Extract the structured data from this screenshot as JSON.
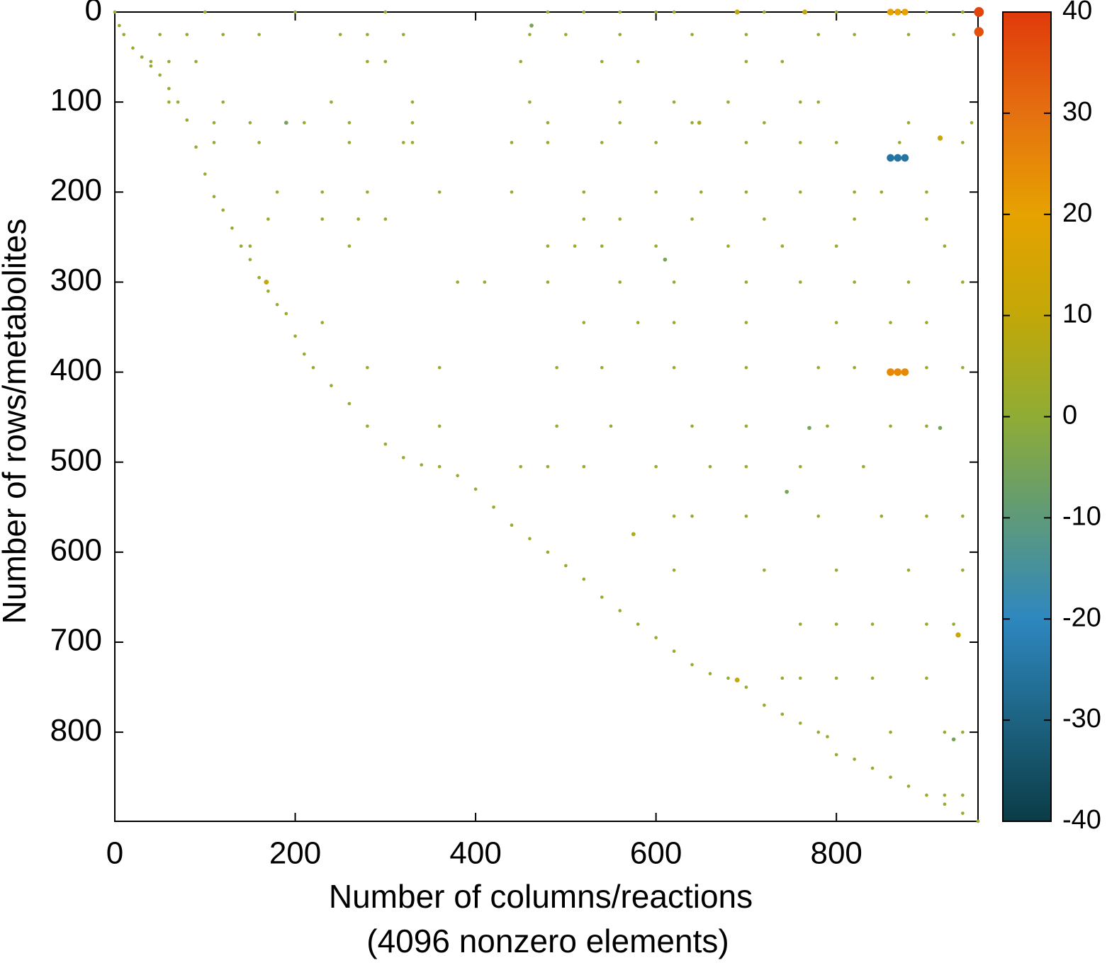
{
  "chart_data": {
    "type": "scatter",
    "xlabel": [
      "Number of columns/reactions",
      "(4096 nonzero elements)"
    ],
    "ylabel": "Number of rows/metabolites",
    "xlim": [
      0,
      957
    ],
    "xticks": [
      0,
      200,
      400,
      600,
      800
    ],
    "ylim": [
      899,
      0
    ],
    "yticks": [
      0,
      100,
      200,
      300,
      400,
      500,
      600,
      700,
      800
    ],
    "clim": [
      -40,
      40
    ],
    "cticks": [
      -40,
      -30,
      -20,
      -10,
      0,
      10,
      20,
      30,
      40
    ],
    "colormap": [
      "#0b3c46",
      "#1d6382",
      "#2e87bf",
      "#5e9a7a",
      "#8fac35",
      "#c2a808",
      "#e6a200",
      "#e57010",
      "#e03a0a"
    ],
    "x": [
      0,
      5,
      10,
      20,
      30,
      40,
      50,
      60,
      70,
      80,
      90,
      100,
      110,
      120,
      130,
      140,
      150,
      160,
      170,
      180,
      190,
      200,
      210,
      220,
      240,
      260,
      280,
      300,
      320,
      340,
      360,
      380,
      400,
      420,
      440,
      460,
      480,
      500,
      520,
      540,
      560,
      580,
      600,
      620,
      640,
      660,
      680,
      700,
      720,
      740,
      760,
      780,
      790,
      800,
      820,
      840,
      860,
      880,
      900,
      920,
      940,
      957,
      100,
      200,
      300,
      480,
      520,
      560,
      600,
      620,
      720,
      800,
      900,
      940,
      50,
      80,
      120,
      160,
      250,
      280,
      320,
      460,
      500,
      560,
      640,
      700,
      780,
      820,
      880,
      930,
      40,
      60,
      90,
      280,
      300,
      450,
      540,
      580,
      700,
      740,
      60,
      120,
      240,
      330,
      460,
      560,
      620,
      680,
      760,
      780,
      110,
      150,
      210,
      260,
      330,
      480,
      560,
      640,
      720,
      880,
      950,
      110,
      160,
      260,
      320,
      330,
      440,
      480,
      540,
      600,
      700,
      760,
      800,
      870,
      940,
      180,
      230,
      280,
      360,
      440,
      520,
      600,
      650,
      700,
      760,
      820,
      850,
      900,
      170,
      230,
      270,
      300,
      520,
      560,
      640,
      720,
      820,
      900,
      150,
      260,
      480,
      510,
      540,
      600,
      680,
      740,
      800,
      920,
      380,
      410,
      480,
      560,
      620,
      700,
      760,
      820,
      880,
      940,
      230,
      520,
      580,
      620,
      700,
      800,
      860,
      900,
      280,
      360,
      490,
      540,
      620,
      700,
      780,
      820,
      900,
      940,
      360,
      490,
      550,
      640,
      700,
      790,
      860,
      900,
      450,
      480,
      520,
      600,
      660,
      700,
      760,
      830,
      620,
      640,
      700,
      780,
      850,
      900,
      940,
      620,
      720,
      800,
      880,
      940,
      760,
      800,
      840,
      900,
      930,
      740,
      760,
      800,
      840,
      900,
      860,
      920,
      940,
      920,
      940,
      958,
      958,
      860,
      868,
      876,
      860,
      868,
      876,
      860,
      868,
      876,
      690,
      765,
      915,
      935,
      168,
      690,
      190,
      462,
      770,
      915,
      745,
      610,
      648,
      575,
      930
    ],
    "y": [
      0,
      15,
      25,
      40,
      50,
      60,
      70,
      85,
      100,
      120,
      150,
      180,
      205,
      220,
      240,
      260,
      275,
      295,
      310,
      325,
      335,
      360,
      380,
      395,
      415,
      435,
      460,
      480,
      495,
      503,
      505,
      515,
      530,
      550,
      570,
      585,
      600,
      615,
      630,
      650,
      665,
      680,
      695,
      710,
      725,
      735,
      740,
      750,
      770,
      780,
      790,
      800,
      805,
      825,
      830,
      840,
      850,
      860,
      870,
      880,
      890,
      899,
      0,
      0,
      0,
      0,
      0,
      0,
      0,
      0,
      0,
      0,
      0,
      0,
      25,
      25,
      25,
      25,
      25,
      25,
      25,
      25,
      25,
      25,
      25,
      25,
      25,
      25,
      25,
      25,
      55,
      55,
      55,
      55,
      55,
      55,
      55,
      55,
      55,
      55,
      100,
      100,
      100,
      100,
      100,
      100,
      100,
      100,
      100,
      100,
      123,
      123,
      123,
      123,
      123,
      123,
      123,
      123,
      123,
      123,
      123,
      145,
      145,
      145,
      145,
      145,
      145,
      145,
      145,
      145,
      145,
      145,
      145,
      145,
      145,
      200,
      200,
      200,
      200,
      200,
      200,
      200,
      200,
      200,
      200,
      200,
      200,
      200,
      230,
      230,
      230,
      230,
      230,
      230,
      230,
      230,
      230,
      230,
      260,
      260,
      260,
      260,
      260,
      260,
      260,
      260,
      260,
      260,
      300,
      300,
      300,
      300,
      300,
      300,
      300,
      300,
      300,
      300,
      345,
      345,
      345,
      345,
      345,
      345,
      345,
      345,
      395,
      395,
      395,
      395,
      395,
      395,
      395,
      395,
      395,
      395,
      460,
      460,
      460,
      460,
      460,
      460,
      460,
      460,
      505,
      505,
      505,
      505,
      505,
      505,
      505,
      505,
      560,
      560,
      560,
      560,
      560,
      560,
      560,
      620,
      620,
      620,
      620,
      620,
      680,
      680,
      680,
      680,
      680,
      740,
      740,
      740,
      740,
      740,
      800,
      800,
      800,
      870,
      870,
      0,
      22,
      0,
      0,
      0,
      162,
      162,
      162,
      400,
      400,
      400,
      0,
      0,
      140,
      692,
      300,
      742,
      123,
      15,
      462,
      462,
      533,
      275,
      123,
      580,
      808
    ],
    "values": [
      1,
      1,
      1,
      1,
      1,
      1,
      1,
      1,
      1,
      1,
      1,
      1,
      1,
      1,
      1,
      1,
      1,
      1,
      1,
      1,
      1,
      1,
      1,
      1,
      1,
      1,
      1,
      1,
      1,
      1,
      1,
      1,
      1,
      1,
      1,
      1,
      1,
      1,
      1,
      1,
      1,
      1,
      1,
      1,
      1,
      1,
      1,
      1,
      1,
      1,
      1,
      1,
      1,
      1,
      1,
      1,
      1,
      1,
      1,
      1,
      1,
      1,
      1,
      1,
      1,
      1,
      1,
      1,
      1,
      1,
      1,
      1,
      1,
      1,
      1,
      1,
      1,
      1,
      1,
      1,
      1,
      1,
      1,
      1,
      1,
      1,
      1,
      1,
      1,
      1,
      1,
      1,
      1,
      1,
      1,
      1,
      1,
      1,
      1,
      1,
      1,
      1,
      1,
      1,
      1,
      1,
      1,
      1,
      1,
      1,
      1,
      1,
      1,
      1,
      1,
      1,
      1,
      1,
      1,
      1,
      1,
      1,
      1,
      1,
      1,
      1,
      1,
      1,
      1,
      1,
      1,
      1,
      1,
      1,
      1,
      1,
      1,
      1,
      1,
      1,
      1,
      1,
      1,
      1,
      1,
      1,
      1,
      1,
      1,
      1,
      1,
      1,
      1,
      1,
      1,
      1,
      1,
      1,
      1,
      1,
      1,
      1,
      1,
      1,
      1,
      1,
      1,
      1,
      1,
      1,
      1,
      1,
      1,
      1,
      1,
      1,
      1,
      1,
      1,
      1,
      1,
      1,
      1,
      1,
      1,
      1,
      1,
      1,
      1,
      1,
      1,
      1,
      1,
      1,
      1,
      1,
      1,
      1,
      1,
      1,
      1,
      1,
      1,
      1,
      1,
      1,
      1,
      1,
      1,
      1,
      1,
      1,
      1,
      1,
      1,
      1,
      1,
      1,
      1,
      1,
      1,
      1,
      1,
      1,
      1,
      1,
      1,
      1,
      1,
      1,
      1,
      1,
      1,
      1,
      1,
      1,
      1,
      1,
      1,
      38,
      36,
      20,
      20,
      20,
      -25,
      -25,
      -25,
      25,
      25,
      25,
      10,
      10,
      12,
      12,
      10,
      10,
      -5,
      -5,
      -5,
      -5,
      -5,
      -5,
      5,
      6,
      -5
    ]
  }
}
